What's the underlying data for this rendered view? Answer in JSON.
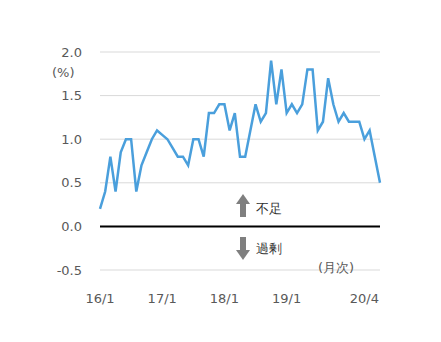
{
  "chart_data": {
    "type": "line",
    "y_label": "(%)",
    "x_label": "(月次)",
    "annotations": [
      "不足",
      "過剰"
    ],
    "categories": [
      "16/1",
      null,
      null,
      null,
      null,
      null,
      null,
      null,
      null,
      null,
      null,
      null,
      "17/1",
      null,
      null,
      null,
      null,
      null,
      null,
      null,
      null,
      null,
      null,
      null,
      "18/1",
      null,
      null,
      null,
      null,
      null,
      null,
      null,
      null,
      null,
      null,
      null,
      "19/1",
      null,
      null,
      null,
      null,
      null,
      null,
      null,
      null,
      null,
      null,
      null,
      null,
      null,
      null,
      "20/4",
      null,
      null,
      null
    ],
    "values": [
      0.2,
      0.4,
      0.8,
      0.4,
      0.85,
      1.0,
      1.0,
      0.4,
      0.7,
      0.85,
      1.0,
      1.1,
      1.05,
      1.0,
      0.9,
      0.8,
      0.8,
      0.7,
      1.0,
      1.0,
      0.8,
      1.3,
      1.3,
      1.4,
      1.4,
      1.1,
      1.3,
      0.8,
      0.8,
      1.1,
      1.4,
      1.2,
      1.3,
      1.9,
      1.4,
      1.8,
      1.3,
      1.4,
      1.3,
      1.4,
      1.8,
      1.8,
      1.1,
      1.2,
      1.7,
      1.4,
      1.2,
      1.3,
      1.2,
      1.2,
      1.2,
      1.0,
      1.1,
      0.8,
      0.5
    ],
    "color": "#4a9fdc",
    "ylim": [
      -0.5,
      2.0
    ],
    "yticks": [
      {
        "value": -0.5,
        "label": "-0.5"
      },
      {
        "value": 0,
        "label": "0.0"
      },
      0.5,
      {
        "value": 1,
        "label": "1.0"
      },
      1.5,
      {
        "value": 2,
        "label": "2.0"
      }
    ],
    "grid": true
  }
}
